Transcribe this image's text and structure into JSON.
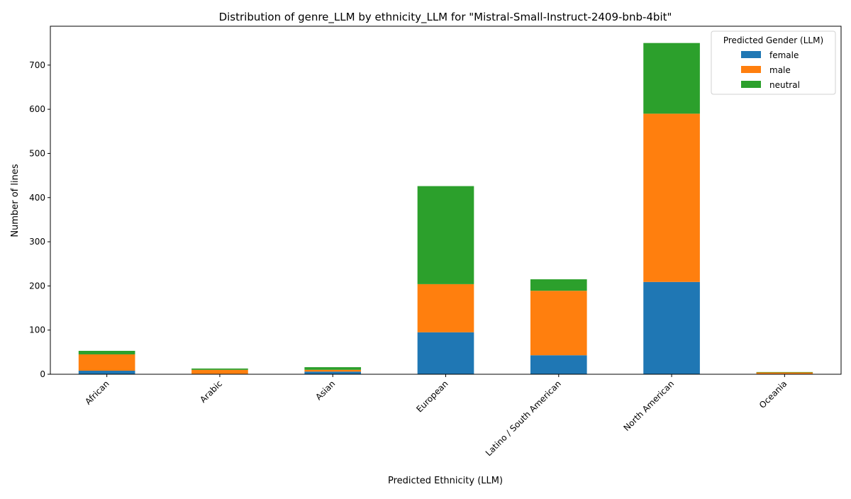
{
  "chart_data": {
    "type": "bar",
    "stacked": true,
    "title": "Distribution of genre_LLM by ethnicity_LLM for \"Mistral-Small-Instruct-2409-bnb-4bit\"",
    "xlabel": "Predicted Ethnicity (LLM)",
    "ylabel": "Number of lines",
    "categories": [
      "African",
      "Arabic",
      "Asian",
      "European",
      "Latino / South American",
      "North American",
      "Oceania"
    ],
    "ylim": [
      0,
      788
    ],
    "yticks": [
      0,
      100,
      200,
      300,
      400,
      500,
      600,
      700
    ],
    "grid": false,
    "legend": {
      "title": "Predicted Gender (LLM)",
      "position": "top-right"
    },
    "series": [
      {
        "name": "female",
        "color": "#1f77b4",
        "values": [
          8,
          1,
          6,
          95,
          43,
          209,
          1
        ]
      },
      {
        "name": "male",
        "color": "#ff7f0e",
        "values": [
          37,
          9,
          4,
          109,
          146,
          381,
          3
        ]
      },
      {
        "name": "neutral",
        "color": "#2ca02c",
        "values": [
          8,
          3,
          6,
          222,
          26,
          160,
          1
        ]
      }
    ]
  }
}
